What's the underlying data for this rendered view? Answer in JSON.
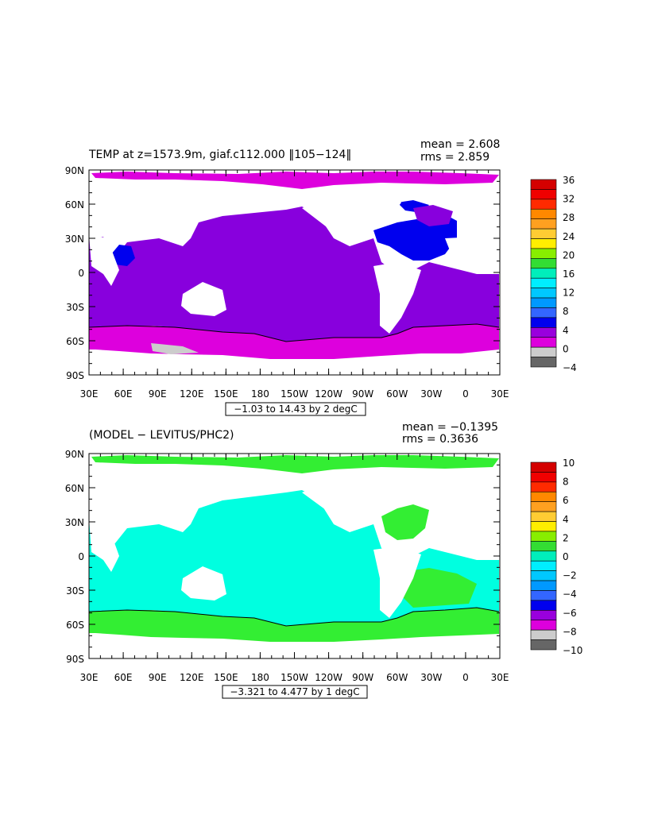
{
  "panels": [
    {
      "id": "temp",
      "title": "TEMP at z=1573.9m, giaf.c112.000 ‖105−124‖",
      "stats": [
        "mean = 2.608",
        "rms = 2.859"
      ],
      "range_label": "−1.03 to 14.43 by 2 degC",
      "colorbar": {
        "labels": [
          "36",
          "32",
          "28",
          "24",
          "20",
          "16",
          "12",
          "8",
          "4",
          "0",
          "−4"
        ],
        "colors": [
          "#d40000",
          "#f00000",
          "#ff2a00",
          "#ff8800",
          "#ffa020",
          "#ffcc33",
          "#ffee00",
          "#88ee00",
          "#33dd33",
          "#00eebb",
          "#00eeff",
          "#00c8ff",
          "#0099ff",
          "#3366ff",
          "#0000ee",
          "#9900dd",
          "#dd00dd",
          "#cccccc",
          "#666666"
        ]
      },
      "ocean_color": "#8800dd",
      "deep_color": "#dd00dd",
      "north_atlantic_color": "#0000ee"
    },
    {
      "id": "diff",
      "title": "(MODEL − LEVITUS/PHC2)",
      "stats": [
        "mean = −0.1395",
        "rms = 0.3636"
      ],
      "range_label": "−3.321 to 4.477 by 1 degC",
      "colorbar": {
        "labels": [
          "10",
          "8",
          "6",
          "4",
          "2",
          "0",
          "−2",
          "−4",
          "−6",
          "−8",
          "−10"
        ],
        "colors": [
          "#d40000",
          "#f00000",
          "#ff2a00",
          "#ff8800",
          "#ffa020",
          "#ffcc33",
          "#ffee00",
          "#88ee00",
          "#33dd33",
          "#00eebb",
          "#00eeff",
          "#00c8ff",
          "#0099ff",
          "#3366ff",
          "#0000ee",
          "#9900dd",
          "#dd00dd",
          "#cccccc",
          "#666666"
        ]
      },
      "ocean_color": "#00ffe0",
      "arctic_color": "#33ee33",
      "southern_color": "#33ee33"
    }
  ],
  "axes": {
    "lat_labels": [
      "90N",
      "60N",
      "30N",
      "0",
      "30S",
      "60S",
      "90S"
    ],
    "lon_labels": [
      "30E",
      "60E",
      "90E",
      "120E",
      "150E",
      "180",
      "150W",
      "120W",
      "90W",
      "60W",
      "30W",
      "0",
      "30E"
    ]
  }
}
